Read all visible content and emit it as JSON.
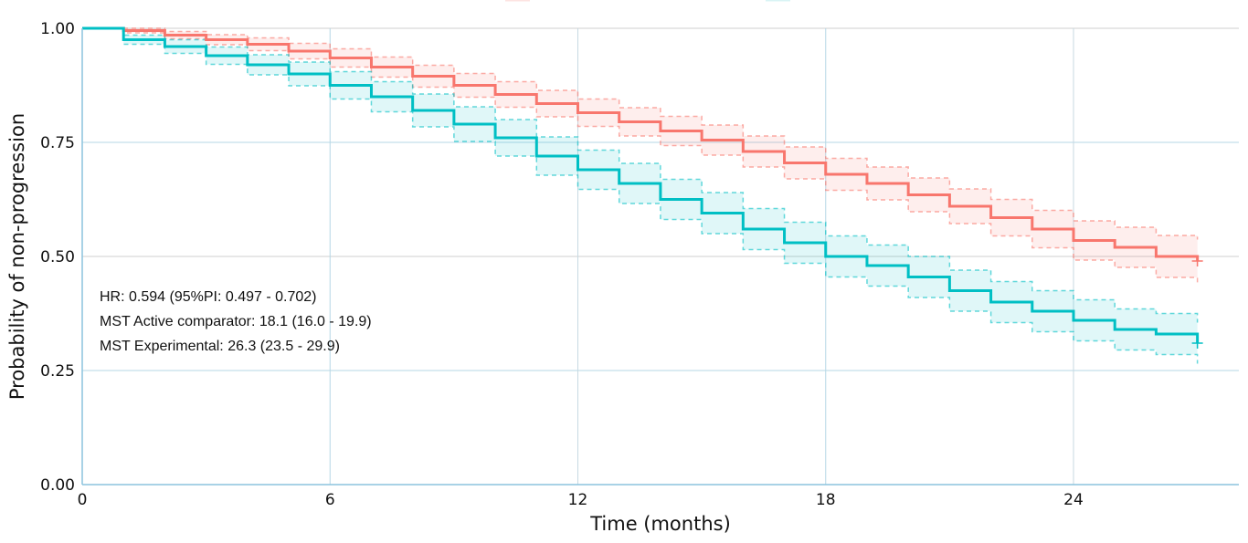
{
  "chart_data": {
    "type": "line",
    "subtype": "kaplan-meier step with confidence bands",
    "title": "",
    "xlabel": "Time (months)",
    "ylabel": "Probability of non-progression",
    "xlim": [
      0,
      28
    ],
    "ylim": [
      0,
      1
    ],
    "xticks": [
      0,
      6,
      12,
      18,
      24
    ],
    "xtick_labels": [
      "0",
      "6",
      "12",
      "18",
      "24"
    ],
    "yticks": [
      0,
      0.25,
      0.5,
      0.75,
      1.0
    ],
    "ytick_labels": [
      "0.00",
      "0.25",
      "0.50",
      "0.75",
      "1.00"
    ],
    "grid": true,
    "legend": "top (cut off)",
    "x": [
      0,
      1,
      2,
      3,
      4,
      5,
      6,
      7,
      8,
      9,
      10,
      11,
      12,
      13,
      14,
      15,
      16,
      17,
      18,
      19,
      20,
      21,
      22,
      23,
      24,
      25,
      26,
      27
    ],
    "series": [
      {
        "color": "#F8766D",
        "values": [
          1,
          0.995,
          0.985,
          0.975,
          0.965,
          0.95,
          0.935,
          0.915,
          0.895,
          0.875,
          0.855,
          0.835,
          0.815,
          0.795,
          0.775,
          0.755,
          0.73,
          0.705,
          0.68,
          0.66,
          0.635,
          0.61,
          0.585,
          0.56,
          0.535,
          0.52,
          0.5,
          0.49
        ],
        "ci_upper": [
          1,
          1.0,
          0.993,
          0.986,
          0.979,
          0.967,
          0.955,
          0.937,
          0.919,
          0.901,
          0.883,
          0.864,
          0.845,
          0.826,
          0.807,
          0.788,
          0.764,
          0.74,
          0.715,
          0.696,
          0.672,
          0.648,
          0.625,
          0.601,
          0.578,
          0.564,
          0.546,
          0.537
        ],
        "ci_lower": [
          1,
          0.99,
          0.977,
          0.964,
          0.951,
          0.933,
          0.915,
          0.893,
          0.871,
          0.849,
          0.827,
          0.806,
          0.785,
          0.764,
          0.743,
          0.722,
          0.696,
          0.67,
          0.645,
          0.624,
          0.598,
          0.572,
          0.545,
          0.519,
          0.492,
          0.476,
          0.454,
          0.443
        ]
      },
      {
        "color": "#00BFC4",
        "values": [
          1,
          0.975,
          0.96,
          0.94,
          0.92,
          0.9,
          0.875,
          0.85,
          0.82,
          0.79,
          0.76,
          0.72,
          0.69,
          0.66,
          0.625,
          0.595,
          0.56,
          0.53,
          0.5,
          0.48,
          0.455,
          0.425,
          0.4,
          0.38,
          0.36,
          0.34,
          0.33,
          0.31
        ],
        "ci_upper": [
          1,
          0.985,
          0.975,
          0.959,
          0.942,
          0.926,
          0.905,
          0.883,
          0.856,
          0.828,
          0.8,
          0.762,
          0.733,
          0.704,
          0.669,
          0.64,
          0.605,
          0.575,
          0.545,
          0.525,
          0.5,
          0.47,
          0.445,
          0.425,
          0.405,
          0.385,
          0.375,
          0.355
        ],
        "ci_lower": [
          1,
          0.965,
          0.945,
          0.921,
          0.898,
          0.874,
          0.845,
          0.817,
          0.784,
          0.752,
          0.72,
          0.678,
          0.647,
          0.616,
          0.581,
          0.55,
          0.515,
          0.485,
          0.455,
          0.435,
          0.41,
          0.38,
          0.355,
          0.335,
          0.315,
          0.295,
          0.285,
          0.265
        ]
      }
    ],
    "annotations": [
      "HR: 0.594 (95%PI: 0.497 - 0.702)",
      "MST Active comparator: 18.1 (16.0 - 19.9)",
      "MST Experimental: 26.3 (23.5 - 29.9)"
    ]
  }
}
